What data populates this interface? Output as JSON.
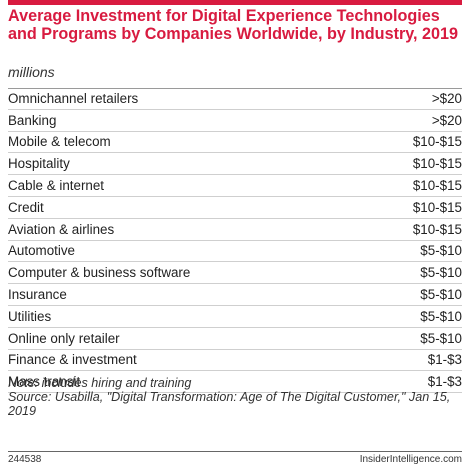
{
  "chart_data": {
    "type": "table",
    "title": "Average Investment for Digital Experience Technologies and Programs by Companies Worldwide, by Industry, 2019",
    "subtitle": "millions",
    "rows": [
      {
        "category": "Omnichannel retailers",
        "value": ">$20"
      },
      {
        "category": "Banking",
        "value": ">$20"
      },
      {
        "category": "Mobile & telecom",
        "value": "$10-$15"
      },
      {
        "category": "Hospitality",
        "value": "$10-$15"
      },
      {
        "category": "Cable & internet",
        "value": "$10-$15"
      },
      {
        "category": "Credit",
        "value": "$10-$15"
      },
      {
        "category": "Aviation & airlines",
        "value": "$10-$15"
      },
      {
        "category": "Automotive",
        "value": "$5-$10"
      },
      {
        "category": "Computer & business software",
        "value": "$5-$10"
      },
      {
        "category": "Insurance",
        "value": "$5-$10"
      },
      {
        "category": "Utilities",
        "value": "$5-$10"
      },
      {
        "category": "Online only retailer",
        "value": "$5-$10"
      },
      {
        "category": "Finance & investment",
        "value": "$1-$3"
      },
      {
        "category": "Mass transit",
        "value": "$1-$3"
      }
    ],
    "note": "Note: includes hiring and training",
    "source": "Source: Usabilla, \"Digital Transformation: Age of The Digital Customer,\" Jan 15, 2019",
    "chart_id": "244538",
    "brand": "InsiderIntelligence.com"
  },
  "colors": {
    "accent": "#d81b40"
  }
}
